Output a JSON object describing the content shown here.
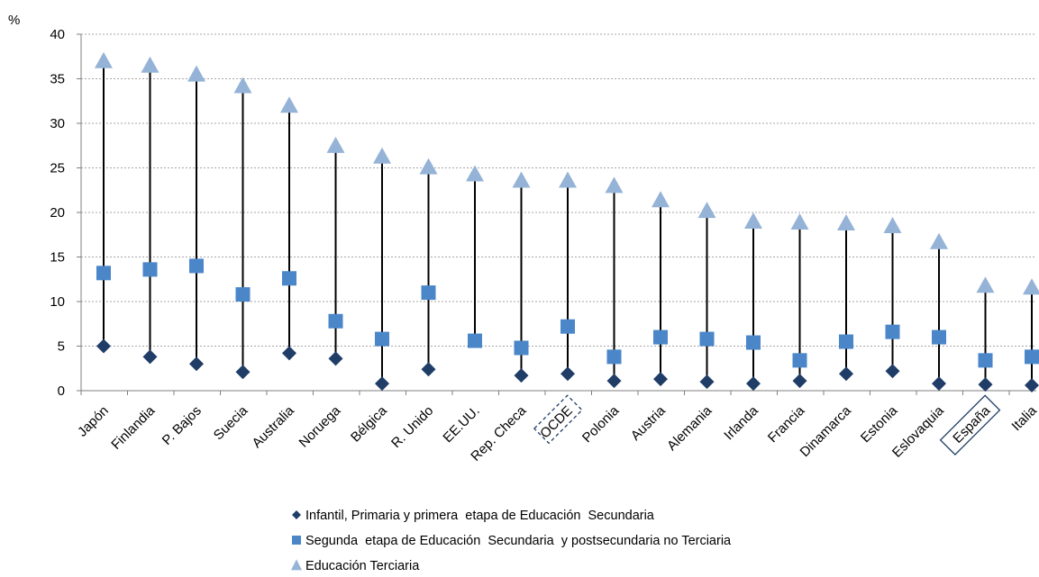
{
  "chart_data": {
    "type": "scatter",
    "ylabel": "%",
    "ylim": [
      0,
      40
    ],
    "yticks": [
      0,
      5,
      10,
      15,
      20,
      25,
      30,
      35,
      40
    ],
    "grid": true,
    "legend_placement": "bottom",
    "categories": [
      "Japón",
      "Finlandia",
      "P. Bajos",
      "Suecia",
      "Australia",
      "Noruega",
      "Bélgica",
      "R. Unido",
      "EE.UU.",
      "Rep. Checa",
      "OCDE",
      "Polonia",
      "Austria",
      "Alemania",
      "Irlanda",
      "Francia",
      "Dinamarca",
      "Estonia",
      "Eslovaquia",
      "España",
      "Italia"
    ],
    "highlighted_categories": [
      {
        "name": "OCDE",
        "style": "dashed"
      },
      {
        "name": "España",
        "style": "solid"
      }
    ],
    "series": [
      {
        "name": "Infantil, Primaria y primera  etapa de Educación  Secundaria",
        "marker": "diamond",
        "color": "#1f3d66",
        "values": [
          5.0,
          3.8,
          3.0,
          2.1,
          4.2,
          3.6,
          0.8,
          2.4,
          null,
          1.7,
          1.9,
          1.1,
          1.3,
          1.0,
          0.8,
          1.1,
          1.9,
          2.2,
          0.8,
          0.7,
          0.6
        ]
      },
      {
        "name": "Segunda  etapa de Educación  Secundaria  y postsecundaria no Terciaria",
        "marker": "square",
        "color": "#4a86c8",
        "values": [
          13.2,
          13.6,
          14.0,
          10.8,
          12.6,
          7.8,
          5.8,
          11.0,
          5.6,
          4.8,
          7.2,
          3.8,
          6.0,
          5.8,
          5.4,
          3.4,
          5.5,
          6.6,
          6.0,
          3.4,
          3.8
        ]
      },
      {
        "name": "Educación Terciaria",
        "marker": "triangle",
        "color": "#95b3d7",
        "values": [
          37.0,
          36.5,
          35.5,
          34.2,
          32.0,
          27.5,
          26.3,
          25.1,
          24.3,
          23.6,
          23.6,
          23.0,
          21.4,
          20.2,
          19.0,
          18.9,
          18.8,
          18.5,
          16.7,
          11.8,
          11.6
        ]
      }
    ]
  }
}
